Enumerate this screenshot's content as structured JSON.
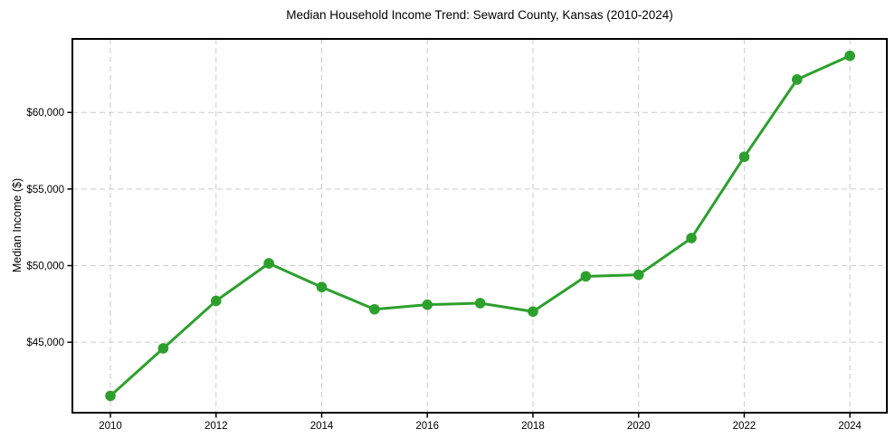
{
  "chart_data": {
    "type": "line",
    "title": "Median Household Income Trend: Seward County, Kansas (2010-2024)",
    "xlabel": "",
    "ylabel": "Median Income ($)",
    "x": [
      2010,
      2011,
      2012,
      2013,
      2014,
      2015,
      2016,
      2017,
      2018,
      2019,
      2020,
      2021,
      2022,
      2023,
      2024
    ],
    "y": [
      41500,
      44600,
      47700,
      50150,
      48600,
      47150,
      47450,
      47550,
      47000,
      49300,
      49400,
      51800,
      57100,
      62150,
      63700
    ],
    "xticks": [
      2010,
      2012,
      2014,
      2016,
      2018,
      2020,
      2022,
      2024
    ],
    "xtick_labels": [
      "2010",
      "2012",
      "2014",
      "2016",
      "2018",
      "2020",
      "2022",
      "2024"
    ],
    "yticks": [
      45000,
      50000,
      55000,
      60000
    ],
    "ytick_labels": [
      "$45,000",
      "$50,000",
      "$55,000",
      "$60,000"
    ],
    "xlim": [
      2009.28,
      2024.7
    ],
    "ylim": [
      40400,
      64800
    ],
    "grid": true,
    "grid_style": "dashed",
    "legend_position": "none",
    "line_color": "#2ca02c",
    "marker": "circle",
    "grid_color": "#cccccc",
    "spine_color": "#000000",
    "text_color": "#000000",
    "background_color": "#ffffff"
  }
}
